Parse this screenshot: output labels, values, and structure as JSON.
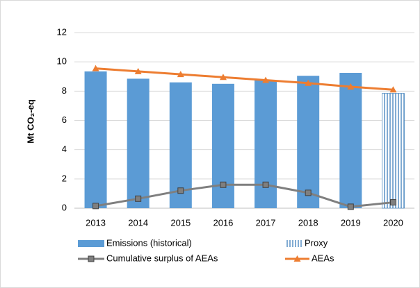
{
  "chart_data": {
    "type": "bar",
    "y_label": "Mt CO₂-eq",
    "categories": [
      "2013",
      "2014",
      "2015",
      "2016",
      "2017",
      "2018",
      "2019",
      "2020"
    ],
    "series": [
      {
        "name": "Emissions (historical)",
        "type": "bar",
        "color": "#5b9bd5",
        "values": [
          9.35,
          8.85,
          8.6,
          8.5,
          8.75,
          9.05,
          9.25,
          null
        ]
      },
      {
        "name": "Proxy",
        "type": "bar",
        "pattern": "vertical-hatch",
        "color": "#2e75b6",
        "values": [
          null,
          null,
          null,
          null,
          null,
          null,
          null,
          7.85
        ]
      },
      {
        "name": "Cumulative surplus of AEAs",
        "type": "line",
        "marker": "square",
        "color": "#7f7f7f",
        "values": [
          0.15,
          0.65,
          1.2,
          1.6,
          1.6,
          1.05,
          0.1,
          0.4
        ]
      },
      {
        "name": "AEAs",
        "type": "line",
        "marker": "triangle",
        "color": "#ed7d31",
        "values": [
          9.55,
          9.35,
          9.15,
          8.95,
          8.75,
          8.55,
          8.3,
          8.1
        ]
      }
    ],
    "ylim": [
      0,
      12
    ],
    "yticks": [
      0,
      2,
      4,
      6,
      8,
      10,
      12
    ],
    "grid": true
  }
}
